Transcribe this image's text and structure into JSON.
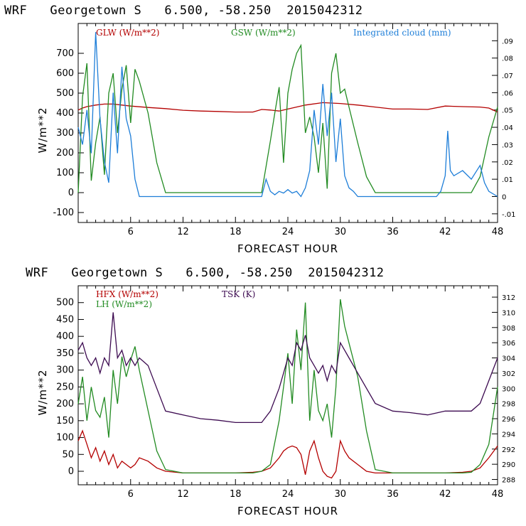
{
  "chart_data": [
    {
      "type": "line",
      "title": "WRF   Georgetown S   6.500, -58.250  2015042312",
      "xlabel": "FORECAST HOUR",
      "ylabel": "W/m**2",
      "xlim": [
        0,
        48
      ],
      "ylim": [
        -150,
        850
      ],
      "xticks": [
        "6",
        "12",
        "18",
        "24",
        "30",
        "36",
        "42",
        "48"
      ],
      "yticks": [
        "-100",
        "0",
        "100",
        "200",
        "300",
        "400",
        "500",
        "600",
        "700"
      ],
      "right_axis": {
        "label": "Integrated cloud (mm)",
        "ylim": [
          -0.015,
          0.1
        ],
        "ticks": [
          "-.01",
          "0",
          ".01",
          ".02",
          ".03",
          ".04",
          ".05",
          ".06",
          ".07",
          ".08",
          ".09"
        ]
      },
      "series": [
        {
          "name": "GLW (W/m**2)",
          "color": "#b40000",
          "axis": "left",
          "x": [
            0,
            0.5,
            1,
            2,
            3,
            4,
            5,
            6,
            8,
            10,
            12,
            14,
            16,
            18,
            20,
            21,
            22,
            23,
            24,
            26,
            28,
            30,
            32,
            34,
            36,
            38,
            40,
            42,
            44,
            46,
            47,
            48
          ],
          "values": [
            415,
            425,
            432,
            440,
            445,
            445,
            440,
            435,
            428,
            422,
            414,
            410,
            408,
            405,
            405,
            418,
            415,
            410,
            420,
            440,
            452,
            448,
            440,
            430,
            420,
            420,
            418,
            435,
            432,
            430,
            425,
            405
          ]
        },
        {
          "name": "GSW (W/m**2)",
          "color": "#228b22",
          "axis": "left",
          "x": [
            0,
            0.5,
            1,
            1.5,
            2,
            2.5,
            3,
            3.5,
            4,
            4.5,
            5,
            5.5,
            6,
            6.5,
            7,
            8,
            9,
            10,
            20,
            21,
            22,
            22.5,
            23,
            23.5,
            24,
            24.5,
            25,
            25.5,
            26,
            26.5,
            27,
            27.5,
            28,
            28.5,
            29,
            29.5,
            30,
            30.5,
            31,
            32,
            33,
            34,
            45,
            46,
            47,
            48
          ],
          "values": [
            0,
            480,
            650,
            60,
            250,
            380,
            90,
            500,
            600,
            300,
            520,
            640,
            350,
            620,
            560,
            400,
            150,
            0,
            0,
            0,
            260,
            400,
            530,
            150,
            500,
            620,
            700,
            740,
            300,
            380,
            280,
            100,
            350,
            20,
            600,
            700,
            500,
            520,
            430,
            250,
            80,
            0,
            0,
            80,
            280,
            430
          ]
        },
        {
          "name": "Integrated cloud (mm)",
          "color": "#1e7ed8",
          "axis": "right",
          "x": [
            0,
            0.5,
            1,
            1.5,
            2,
            2.5,
            3,
            3.5,
            4,
            4.5,
            5,
            5.5,
            6,
            6.5,
            7,
            12,
            18,
            21,
            21.5,
            22,
            22.5,
            23,
            23.5,
            24,
            24.5,
            25,
            25.5,
            26,
            26.5,
            27,
            27.5,
            28,
            28.5,
            29,
            29.5,
            30,
            30.5,
            31,
            31.5,
            32,
            41,
            41.5,
            42,
            42.3,
            42.6,
            43,
            44,
            45,
            46,
            46.5,
            47,
            48
          ],
          "values": [
            0.04,
            0.03,
            0.05,
            0.025,
            0.095,
            0.045,
            0.02,
            0.008,
            0.06,
            0.025,
            0.075,
            0.045,
            0.035,
            0.01,
            0,
            0,
            0,
            0,
            0.01,
            0.003,
            0.001,
            0.003,
            0.002,
            0.004,
            0.002,
            0.003,
            0.0,
            0.005,
            0.015,
            0.05,
            0.03,
            0.065,
            0.035,
            0.06,
            0.02,
            0.045,
            0.012,
            0.005,
            0.003,
            0,
            0,
            0.003,
            0.012,
            0.038,
            0.015,
            0.012,
            0.015,
            0.01,
            0.018,
            0.008,
            0.003,
            0
          ]
        }
      ]
    },
    {
      "type": "line",
      "title": "WRF   Georgetown S   6.500, -58.250  2015042312",
      "xlabel": "FORECAST HOUR",
      "ylabel": "W/m**2",
      "xlim": [
        0,
        48
      ],
      "ylim": [
        -40,
        550
      ],
      "xticks": [
        "6",
        "12",
        "18",
        "24",
        "30",
        "36",
        "42",
        "48"
      ],
      "yticks": [
        "0",
        "50",
        "100",
        "150",
        "200",
        "250",
        "300",
        "350",
        "400",
        "450",
        "500"
      ],
      "right_axis": {
        "label": "TSK (K)",
        "ylim": [
          287.3,
          313.5
        ],
        "ticks": [
          "288",
          "290",
          "292",
          "294",
          "296",
          "298",
          "300",
          "302",
          "304",
          "306",
          "308",
          "310",
          "312"
        ]
      },
      "series": [
        {
          "name": "HFX (W/m**2)",
          "color": "#b40000",
          "axis": "left",
          "x": [
            0,
            0.5,
            1,
            1.5,
            2,
            2.5,
            3,
            3.5,
            4,
            4.5,
            5,
            5.5,
            6,
            6.5,
            7,
            8,
            9,
            10,
            12,
            14,
            18,
            20,
            21,
            22,
            23,
            23.5,
            24,
            24.5,
            25,
            25.5,
            26,
            26.5,
            27,
            27.5,
            28,
            28.5,
            29,
            29.5,
            30,
            30.5,
            31,
            32,
            33,
            34,
            36,
            42,
            44,
            45,
            46,
            47,
            48
          ],
          "values": [
            90,
            120,
            80,
            40,
            70,
            30,
            60,
            20,
            50,
            10,
            30,
            20,
            10,
            20,
            40,
            30,
            10,
            0,
            -5,
            -5,
            -5,
            -3,
            0,
            10,
            40,
            60,
            70,
            75,
            70,
            50,
            -10,
            60,
            90,
            40,
            0,
            -15,
            -20,
            0,
            90,
            60,
            40,
            20,
            0,
            -5,
            -5,
            -5,
            -3,
            0,
            10,
            40,
            75
          ]
        },
        {
          "name": "LH (W/m**2)",
          "color": "#228b22",
          "axis": "left",
          "x": [
            0,
            0.5,
            1,
            1.5,
            2,
            2.5,
            3,
            3.5,
            4,
            4.5,
            5,
            5.5,
            6,
            6.5,
            7,
            8,
            9,
            10,
            12,
            14,
            18,
            20,
            21,
            22,
            23,
            23.5,
            24,
            24.5,
            25,
            25.5,
            26,
            26.5,
            27,
            27.5,
            28,
            28.5,
            29,
            29.5,
            30,
            30.5,
            31,
            32,
            33,
            34,
            36,
            42,
            44,
            45,
            46,
            47,
            48
          ],
          "values": [
            200,
            280,
            150,
            250,
            180,
            160,
            220,
            100,
            300,
            200,
            340,
            280,
            330,
            370,
            300,
            180,
            60,
            5,
            -5,
            -5,
            -5,
            -5,
            0,
            20,
            150,
            250,
            350,
            200,
            420,
            300,
            500,
            150,
            300,
            180,
            150,
            200,
            100,
            250,
            510,
            430,
            380,
            280,
            120,
            5,
            -5,
            -5,
            -5,
            -3,
            20,
            80,
            250
          ]
        },
        {
          "name": "TSK (K)",
          "color": "#3c0a50",
          "axis": "right",
          "x": [
            0,
            0.5,
            1,
            1.5,
            2,
            2.5,
            3,
            3.5,
            4,
            4.5,
            5,
            5.5,
            6,
            6.5,
            7,
            8,
            9,
            10,
            12,
            14,
            16,
            18,
            20,
            21,
            22,
            23,
            23.5,
            24,
            24.5,
            25,
            25.5,
            26,
            26.5,
            27,
            27.5,
            28,
            28.5,
            29,
            29.5,
            30,
            30.5,
            31,
            32,
            33,
            34,
            36,
            38,
            40,
            42,
            44,
            45,
            46,
            47,
            48
          ],
          "values": [
            305,
            306,
            304,
            303,
            304,
            302,
            304,
            303,
            310,
            304,
            305,
            303,
            304,
            303,
            304,
            303,
            300,
            297,
            296.5,
            296,
            295.8,
            295.5,
            295.5,
            295.5,
            297,
            300,
            302,
            304,
            303,
            306,
            305,
            307,
            304,
            303,
            302,
            303,
            301,
            303,
            302,
            306,
            305,
            304,
            302,
            300,
            298,
            297,
            296.8,
            296.5,
            297,
            297,
            297,
            298,
            301,
            304
          ]
        }
      ]
    }
  ]
}
